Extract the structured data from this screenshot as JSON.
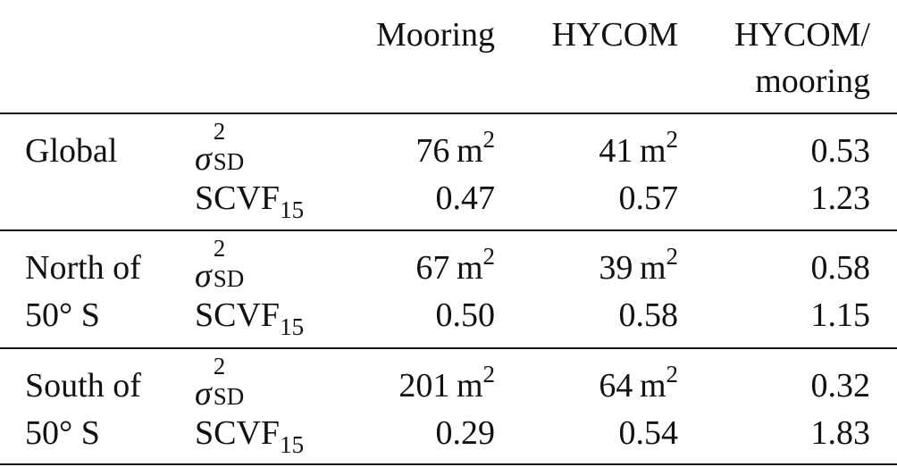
{
  "header": {
    "col_mooring": "Mooring",
    "col_hycom": "HYCOM",
    "col_ratio_line1": "HYCOM/",
    "col_ratio_line2": "mooring"
  },
  "symbols": {
    "sigma": "σ",
    "sigma_sup": "2",
    "sigma_sub": "SD",
    "scvf": "SCVF",
    "scvf_sub": "15",
    "unit": "m",
    "unit_sup": "2"
  },
  "groups": [
    {
      "label_line1": "Global",
      "label_line2": "",
      "sigma_mooring": "76",
      "sigma_hycom": "41",
      "sigma_ratio": "0.53",
      "scvf_mooring": "0.47",
      "scvf_hycom": "0.57",
      "scvf_ratio": "1.23"
    },
    {
      "label_line1": "North of",
      "label_line2": "50° S",
      "sigma_mooring": "67",
      "sigma_hycom": "39",
      "sigma_ratio": "0.58",
      "scvf_mooring": "0.50",
      "scvf_hycom": "0.58",
      "scvf_ratio": "1.15"
    },
    {
      "label_line1": "South of",
      "label_line2": "50° S",
      "sigma_mooring": "201",
      "sigma_hycom": "64",
      "sigma_ratio": "0.32",
      "scvf_mooring": "0.29",
      "scvf_hycom": "0.54",
      "scvf_ratio": "1.83"
    }
  ]
}
